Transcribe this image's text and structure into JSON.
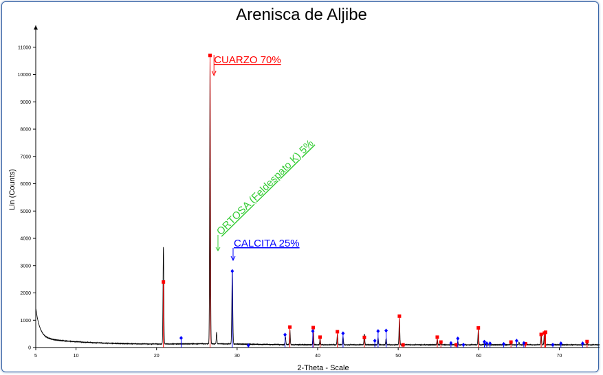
{
  "chart_data": {
    "type": "line",
    "title": "Arenisca de Aljibe",
    "xlabel": "2-Theta - Scale",
    "ylabel": "Lin (Counts)",
    "xlim": [
      5,
      75
    ],
    "ylim": [
      0,
      11800
    ],
    "xticks": [
      5,
      10,
      20,
      30,
      40,
      50,
      60,
      70
    ],
    "yticks": [
      0,
      1000,
      2000,
      3000,
      4000,
      5000,
      6000,
      7000,
      8000,
      9000,
      10000,
      11000
    ],
    "annotations": [
      {
        "text": "CUARZO 70%",
        "color": "#ff0000",
        "x": 26.7,
        "y": 10700
      },
      {
        "text": "ORTOSA (Feldespato K) 5%",
        "color": "#33cc33",
        "x": 27.6,
        "y": 3500
      },
      {
        "text": "CALCITA 25%",
        "color": "#0000ff",
        "x": 29.5,
        "y": 3200
      }
    ],
    "series": [
      {
        "color": "#000000",
        "peaks": [
          {
            "x": 20.85,
            "h": 3550,
            "w": 0.07
          },
          {
            "x": 26.64,
            "h": 10550,
            "w": 0.07
          },
          {
            "x": 27.45,
            "h": 420,
            "w": 0.06
          },
          {
            "x": 29.4,
            "h": 2700,
            "w": 0.08
          },
          {
            "x": 36.0,
            "h": 280,
            "w": 0.07
          },
          {
            "x": 36.55,
            "h": 560,
            "w": 0.07
          },
          {
            "x": 39.45,
            "h": 620,
            "w": 0.07
          },
          {
            "x": 40.3,
            "h": 260,
            "w": 0.06
          },
          {
            "x": 42.45,
            "h": 380,
            "w": 0.07
          },
          {
            "x": 43.15,
            "h": 300,
            "w": 0.07
          },
          {
            "x": 45.8,
            "h": 400,
            "w": 0.07
          },
          {
            "x": 47.5,
            "h": 260,
            "w": 0.07
          },
          {
            "x": 48.5,
            "h": 250,
            "w": 0.07
          },
          {
            "x": 50.15,
            "h": 980,
            "w": 0.07
          },
          {
            "x": 54.85,
            "h": 220,
            "w": 0.07
          },
          {
            "x": 55.3,
            "h": 150,
            "w": 0.06
          },
          {
            "x": 57.4,
            "h": 130,
            "w": 0.06
          },
          {
            "x": 59.95,
            "h": 560,
            "w": 0.07
          },
          {
            "x": 60.7,
            "h": 100,
            "w": 0.06
          },
          {
            "x": 64.0,
            "h": 120,
            "w": 0.06
          },
          {
            "x": 65.0,
            "h": 90,
            "w": 0.06
          },
          {
            "x": 67.75,
            "h": 420,
            "w": 0.07
          },
          {
            "x": 68.15,
            "h": 450,
            "w": 0.07
          },
          {
            "x": 73.45,
            "h": 120,
            "w": 0.06
          }
        ]
      },
      {
        "name": "CUARZO",
        "color": "#ff0000",
        "marker": "square",
        "sticks": [
          {
            "x": 20.85,
            "y": 2400
          },
          {
            "x": 26.64,
            "y": 10700
          },
          {
            "x": 36.55,
            "y": 750
          },
          {
            "x": 39.45,
            "y": 730
          },
          {
            "x": 40.3,
            "y": 380
          },
          {
            "x": 42.45,
            "y": 580
          },
          {
            "x": 45.8,
            "y": 370
          },
          {
            "x": 50.15,
            "y": 1150
          },
          {
            "x": 50.6,
            "y": 100
          },
          {
            "x": 54.85,
            "y": 380
          },
          {
            "x": 55.3,
            "y": 200
          },
          {
            "x": 57.2,
            "y": 100
          },
          {
            "x": 59.95,
            "y": 720
          },
          {
            "x": 64.0,
            "y": 200
          },
          {
            "x": 65.8,
            "y": 140
          },
          {
            "x": 67.75,
            "y": 480
          },
          {
            "x": 68.15,
            "y": 530
          },
          {
            "x": 68.3,
            "y": 560
          },
          {
            "x": 73.45,
            "y": 220
          }
        ]
      },
      {
        "name": "CALCITA",
        "color": "#0000ff",
        "marker": "diamond",
        "sticks": [
          {
            "x": 23.05,
            "y": 350
          },
          {
            "x": 29.4,
            "y": 2800
          },
          {
            "x": 31.4,
            "y": 80
          },
          {
            "x": 35.95,
            "y": 470
          },
          {
            "x": 39.4,
            "y": 600
          },
          {
            "x": 43.15,
            "y": 520
          },
          {
            "x": 47.1,
            "y": 250
          },
          {
            "x": 47.5,
            "y": 600
          },
          {
            "x": 48.5,
            "y": 620
          },
          {
            "x": 56.55,
            "y": 160
          },
          {
            "x": 57.4,
            "y": 330
          },
          {
            "x": 58.1,
            "y": 100
          },
          {
            "x": 60.7,
            "y": 210
          },
          {
            "x": 61.0,
            "y": 150
          },
          {
            "x": 61.4,
            "y": 150
          },
          {
            "x": 63.1,
            "y": 130
          },
          {
            "x": 64.7,
            "y": 250
          },
          {
            "x": 65.6,
            "y": 160
          },
          {
            "x": 69.2,
            "y": 100
          },
          {
            "x": 70.2,
            "y": 150
          },
          {
            "x": 72.9,
            "y": 150
          }
        ]
      }
    ]
  }
}
